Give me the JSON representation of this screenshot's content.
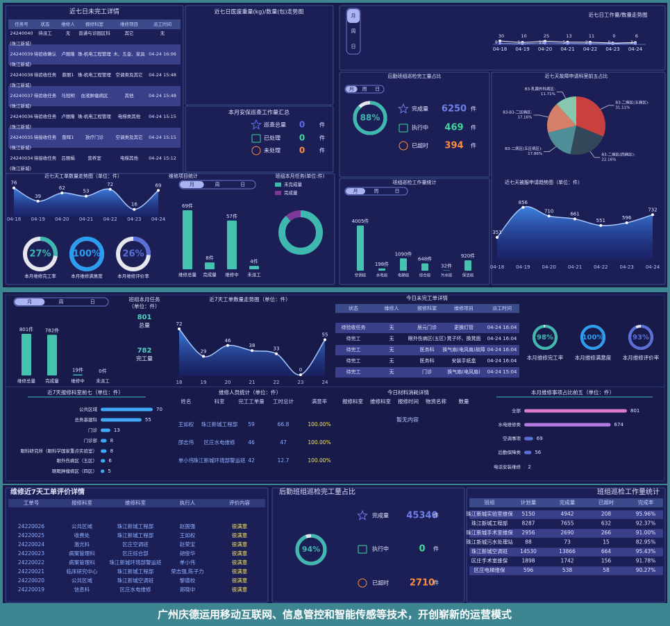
{
  "caption": "广州庆德运用移动互联网、信息管控和智能传感等技术，开创崭新的运营模式",
  "dashboard1": {
    "pending_table": {
      "title": "近七日未完工详情",
      "headers": [
        "任务号",
        "状态",
        "维修人",
        "报修科室",
        "维修项目",
        "派工时间"
      ],
      "rows": [
        {
          "cells": [
            "24240040",
            "待派工",
            "无",
            "普通与诊园区科",
            "其它",
            "无"
          ],
          "campus": "(珠江新城)"
        },
        {
          "cells": [
            "24240039",
            "待验收确认",
            "卢丽隆",
            "珠-机电工程管理",
            "木、五金、家具",
            "04-24 16:06"
          ],
          "campus": "(珠江新城)"
        },
        {
          "cells": [
            "24240038",
            "待验收任务",
            "蔡丽1",
            "珠-机电工程管理",
            "空调类及其它",
            "04-24 15:48"
          ],
          "campus": "(珠江新城)"
        },
        {
          "cells": [
            "24240037",
            "待验收任务",
            "马冠明",
            "血液肿瘤病区",
            "其他",
            "04-24 15:48"
          ],
          "campus": "(珠江新城)"
        },
        {
          "cells": [
            "24240036",
            "待验收任务",
            "卢丽隆",
            "珠-机电工程管理",
            "电梯类其他",
            "04-24 15:15"
          ],
          "campus": "(珠江新城)"
        },
        {
          "cells": [
            "24240035",
            "待接收任务",
            "詹晖1",
            "放疗门诊",
            "空调类及其它",
            "04-24 15:15"
          ],
          "campus": "(珠江新城)"
        },
        {
          "cells": [
            "24240034",
            "待接收任务",
            "吕丽娟",
            "营养室",
            "电梯其他",
            "04-24 15:12"
          ],
          "campus": "(珠江新城)"
        }
      ]
    },
    "medical_waste": {
      "title": "近七日医废重量(kg)/数量(包)走势图"
    },
    "security": {
      "title": "本月安保巡查工作量汇总",
      "items": [
        {
          "name": "巡查总量",
          "value": 0,
          "unit": "件",
          "color": "#5b6fe8"
        },
        {
          "name": "已处理",
          "value": 0,
          "unit": "件",
          "color": "#41d99a"
        },
        {
          "name": "未处理",
          "value": 0,
          "unit": "件",
          "color": "#ff8c3a"
        }
      ]
    },
    "order_trend": {
      "type": "area",
      "title": "近七天工单数量走势图（单位：件）",
      "categories": [
        "04-18",
        "04-19",
        "04-20",
        "04-21",
        "04-22",
        "04-23",
        "04-24"
      ],
      "values": [
        76,
        39,
        62,
        53,
        72,
        16,
        69
      ]
    },
    "rates": [
      {
        "value": 27,
        "label": "27%",
        "caption": "本月维修完工率",
        "color": "#3fb8b0"
      },
      {
        "value": 100,
        "label": "100%",
        "caption": "本月维修满意度",
        "color": "#2a9df0"
      },
      {
        "value": 26,
        "label": "26%",
        "caption": "本月维修评价率",
        "color": "#5b6fd8"
      }
    ],
    "repair_stats": {
      "type": "bar",
      "title": "维修项目统计",
      "tabs": [
        "月",
        "周",
        "日"
      ],
      "categories": [
        "维修总量",
        "完成量",
        "维修中",
        "未派工"
      ],
      "values": [
        69,
        8,
        57,
        4
      ],
      "value_labels": [
        "69件",
        "8件",
        "57件",
        "4件"
      ],
      "color": "#46c2b0"
    },
    "team_tasks": {
      "type": "donut",
      "title": "班组本月任务(单位:件)",
      "series": [
        {
          "name": "未完成量",
          "color": "#3fb8b0",
          "value": 61
        },
        {
          "name": "完成量",
          "color": "#7b3a9a",
          "value": 8
        }
      ]
    },
    "workload_trend": {
      "type": "line",
      "title": "近七日工作量/数量走势图",
      "tabs": [
        "月",
        "周",
        "日"
      ],
      "categories": [
        "04-18",
        "04-19",
        "04-20",
        "04-21",
        "04-22",
        "04-23",
        "04-24"
      ],
      "series": [
        {
          "color": "#ffffff",
          "values": [
            30,
            10,
            25,
            13,
            11,
            0,
            6
          ]
        },
        {
          "color": "#8fa0ff",
          "values": [
            8,
            1,
            11,
            5,
            2,
            0,
            3
          ]
        }
      ]
    },
    "inspection_share": {
      "title": "后勤班组巡检完工量占比",
      "tabs": [
        "月",
        "周",
        "日"
      ],
      "rate": {
        "value": 88,
        "label": "88%"
      },
      "items": [
        {
          "name": "完成量",
          "value": 6250,
          "unit": "件",
          "color": "#6f7fe8"
        },
        {
          "name": "执行中",
          "value": 469,
          "unit": "件",
          "color": "#41d99a"
        },
        {
          "name": "已超时",
          "value": 394,
          "unit": "件",
          "color": "#ff8c3a"
        }
      ]
    },
    "fault_top5": {
      "type": "pie",
      "title": "近七天故障申请科室前五占比",
      "categories": [
        "B3-二病区(五病区):",
        "B3-二病区(四病区):",
        "B3-二病区(五区病区):",
        "B3-B3-二区病区:",
        "B3-乳腺外科病区:"
      ],
      "values": [
        31.11,
        22.16,
        17.86,
        17.16,
        11.71
      ],
      "value_labels": [
        "31.11%",
        "22.16%",
        "17.86%",
        "17.16%",
        "11.71%"
      ],
      "colors": [
        "#c8413f",
        "#34475a",
        "#4f8e98",
        "#d67f68",
        "#86c7ae"
      ]
    },
    "inspection_workload": {
      "type": "bar",
      "title": "班组巡检工作量统计",
      "tabs": [
        "月",
        "周",
        "日"
      ],
      "categories": [
        "空调班",
        "水电班",
        "电梯班",
        "综合班",
        "污水班",
        "保洁班"
      ],
      "values": [
        4005,
        198,
        1090,
        648,
        32,
        920
      ],
      "value_labels": [
        "4005件",
        "198件",
        "1090件",
        "648件",
        "32件",
        "920件"
      ],
      "color": "#46c2b0"
    },
    "linen_trend": {
      "type": "area",
      "title": "近七天被服申请趋势图（单位：件）",
      "categories": [
        "04-18",
        "04-19",
        "04-20",
        "04-21",
        "04-22",
        "04-23",
        "04-24"
      ],
      "values": [
        351,
        856,
        710,
        661,
        551,
        596,
        732
      ]
    }
  },
  "dashboard2": {
    "repair_stats": {
      "type": "bar",
      "tabs": [
        "月",
        "周",
        "日"
      ],
      "categories": [
        "维修总量",
        "完成量",
        "维修中",
        "未派工"
      ],
      "values": [
        801,
        782,
        19,
        0
      ],
      "value_labels": [
        "801件",
        "782件",
        "19件",
        "0件"
      ],
      "color": "#46c2b0"
    },
    "team_tasks": {
      "title": "班组本月任务",
      "subtitle": "（单位：件）",
      "stats": [
        {
          "value": 801,
          "name": "总量"
        },
        {
          "value": 782,
          "name": "完工量"
        }
      ]
    },
    "order_trend": {
      "type": "area",
      "title": "近7天工单数量走势图（单位：件）",
      "categories": [
        "18",
        "19",
        "20",
        "21",
        "22",
        "23",
        "24"
      ],
      "values": [
        72,
        29,
        46,
        38,
        33,
        0,
        55
      ]
    },
    "today_pending": {
      "title": "今日未完工单详情",
      "headers": [
        "状态",
        "维修人",
        "报修科室",
        "维修项目",
        "派工时间"
      ],
      "rows": [
        [
          "待验收任务",
          "无",
          "居元门诊",
          "更换灯管",
          "04-24 16:04"
        ],
        [
          "待完工",
          "无",
          "眼外伤病区(五区)",
          "凳子坏、换凳面",
          "04-24 16:04"
        ],
        [
          "待完工",
          "无",
          "医务科",
          "换气扇(电风扇)故障",
          "04-24 16:04"
        ],
        [
          "待完工",
          "无",
          "医务科",
          "安装手纸盒",
          "04-24 16:04"
        ],
        [
          "待完工",
          "无",
          "门诊",
          "换气扇(电风扇)",
          "04-24 15:04"
        ]
      ]
    },
    "rates": [
      {
        "value": 98,
        "label": "98%",
        "caption": "本月维修完工率",
        "color": "#3fb8b0"
      },
      {
        "value": 100,
        "label": "100%",
        "caption": "本月维修满意度",
        "color": "#2a9df0"
      },
      {
        "value": 93,
        "label": "93%",
        "caption": "本月维修评价率",
        "color": "#5b6fd8"
      }
    ],
    "dept_top7": {
      "type": "hbar",
      "title": "近7天报修科室前七（单位：件）",
      "categories": [
        "公共区域",
        "总务基建科",
        "门诊",
        "门诊部",
        "眼科研究所（眼科学国家重点实验室）",
        "眼外伤病区（五区）",
        "眼眶肿瘤病区（四区）"
      ],
      "values": [
        70,
        55,
        13,
        8,
        8,
        6,
        5
      ],
      "colors": [
        "#3fa9f5"
      ]
    },
    "staff": {
      "title": "维修人员统计（单位：件）",
      "headers": [
        "姓名",
        "科室",
        "完工工单量",
        "工时总计",
        "满意率"
      ],
      "rows": [
        [
          "王如权",
          "珠江新城工程部",
          "59",
          "66.8",
          "100.00%"
        ],
        [
          "邵志伟",
          "区庄水电维修",
          "46",
          "47",
          "100.00%"
        ],
        [
          "单小伟",
          "珠江新城环境部警运班",
          "42",
          "12.7",
          "100.00%"
        ]
      ]
    },
    "materials": {
      "title": "今日材料消耗详情",
      "headers": [
        "报修科室",
        "维修科室",
        "报修时间",
        "物资名称",
        "数量"
      ],
      "empty": "暂无内容"
    },
    "item_top5": {
      "type": "hbar",
      "title": "本月维修事项占比前五（单位：件）",
      "categories": [
        "全部",
        "水电维修类",
        "空调事项",
        "后勤保障类",
        "电话安装维修"
      ],
      "values": [
        801,
        674,
        69,
        56,
        2
      ],
      "colors": [
        "#d77ac8",
        "#b37ae0",
        "#5b6fd8",
        "#5b6fd8",
        "#5b6fd8"
      ]
    }
  },
  "dashboard3": {
    "evaluations": {
      "title": "维修近7天工单评价详情",
      "headers": [
        "工单号",
        "报修科室",
        "维修科室",
        "执行人",
        "评价内容"
      ],
      "rows": [
        [
          "24220026",
          "公共区域",
          "珠江新城工程部",
          "赵国强",
          "很满意"
        ],
        [
          "24220025",
          "收费处",
          "珠江新城工程部",
          "王如权",
          "很满意"
        ],
        [
          "24220024",
          "激光科",
          "区庄空调班",
          "赵荣宝",
          "很满意"
        ],
        [
          "24220023",
          "病案管理科",
          "区庄综合部",
          "胡俊华",
          "很满意"
        ],
        [
          "24220022",
          "病案管理科",
          "珠江新城环境部警运班",
          "单小伟",
          "很满意"
        ],
        [
          "24220021",
          "临床研究中心",
          "珠江新城工程部",
          "荣志强,陈子力",
          "很满意"
        ],
        [
          "24220020",
          "公共区域",
          "珠江新城空调班",
          "黎德校",
          "很满意"
        ],
        [
          "24220019",
          "信息科",
          "区庄水电维修",
          "郑晓中",
          "很满意"
        ]
      ]
    },
    "inspection_share": {
      "title": "后勤班组巡检完工量占比",
      "rate": {
        "value": 94,
        "label": "94%"
      },
      "items": [
        {
          "name": "完成量",
          "value": 45340,
          "unit": "件",
          "color": "#6f7fe8"
        },
        {
          "name": "执行中",
          "value": 0,
          "unit": "件",
          "color": "#41d99a"
        },
        {
          "name": "已超时",
          "value": 2710,
          "unit": "件",
          "color": "#ff8c3a"
        }
      ]
    },
    "team_workload": {
      "title": "班组巡检工作量统计",
      "headers": [
        "班组",
        "计划量",
        "完成量",
        "已超时",
        "完成率"
      ],
      "rows": [
        [
          "珠江新城实验室维保",
          "5150",
          "4942",
          "208",
          "95.96%"
        ],
        [
          "珠江新城工程部",
          "8287",
          "7655",
          "632",
          "92.37%"
        ],
        [
          "珠江新城手术室维保",
          "2956",
          "2690",
          "266",
          "91.00%"
        ],
        [
          "珠江新城污水处理站",
          "88",
          "73",
          "15",
          "82.95%"
        ],
        [
          "珠江新城空调班",
          "14530",
          "13866",
          "664",
          "95.43%"
        ],
        [
          "区庄手术室维保",
          "1898",
          "1742",
          "156",
          "91.78%"
        ],
        [
          "区庄电梯维保",
          "596",
          "538",
          "58",
          "90.27%"
        ]
      ]
    }
  }
}
